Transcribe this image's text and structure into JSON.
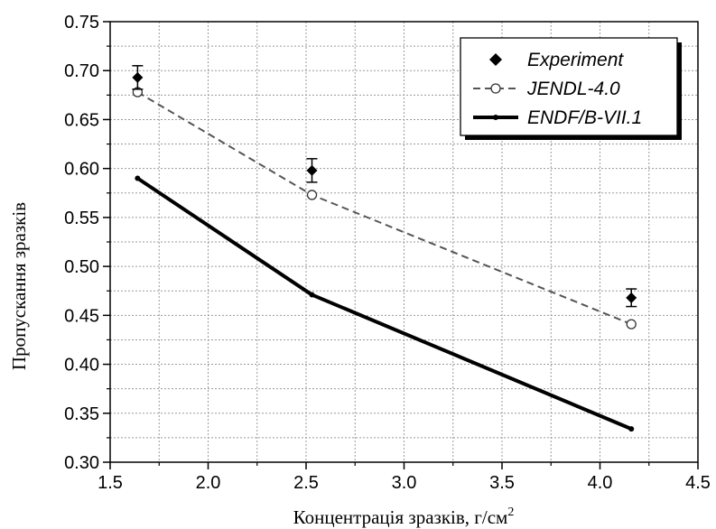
{
  "chart_data": {
    "type": "line",
    "xlabel": "Концентрація зразків, г/см",
    "xlabel_sup": "2",
    "ylabel": "Пропускання зразків",
    "xlim": [
      1.5,
      4.5
    ],
    "ylim": [
      0.3,
      0.75
    ],
    "xticks": [
      "1.5",
      "2.0",
      "2.5",
      "3.0",
      "3.5",
      "4.0",
      "4.5"
    ],
    "yticks": [
      "0.30",
      "0.35",
      "0.40",
      "0.45",
      "0.50",
      "0.55",
      "0.60",
      "0.65",
      "0.70",
      "0.75"
    ],
    "grid": true,
    "legend_position": "top-right",
    "series": [
      {
        "name": "Experiment",
        "style": "marker-diamond-errorbar",
        "color": "#000000",
        "x": [
          1.64,
          2.53,
          4.16
        ],
        "y": [
          0.693,
          0.598,
          0.468
        ],
        "err": [
          0.012,
          0.012,
          0.009
        ]
      },
      {
        "name": "JENDL-4.0",
        "style": "dashed-open-circle",
        "color": "#555555",
        "x": [
          1.64,
          2.53,
          4.16
        ],
        "y": [
          0.678,
          0.573,
          0.441
        ]
      },
      {
        "name": "ENDF/B-VII.1",
        "style": "thick-solid-dot",
        "color": "#000000",
        "x": [
          1.64,
          2.53,
          4.16
        ],
        "y": [
          0.59,
          0.471,
          0.334
        ]
      }
    ]
  }
}
